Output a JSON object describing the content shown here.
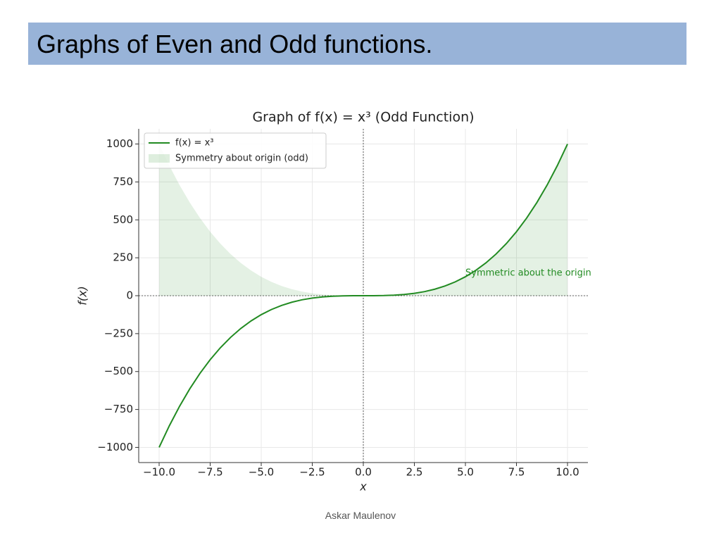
{
  "slide": {
    "title": "Graphs of Even and Odd functions.",
    "footer": "Askar Maulenov"
  },
  "chart_data": {
    "type": "line",
    "title": "Graph of f(x) = x³ (Odd Function)",
    "x_label": "x",
    "y_label": "f(x)",
    "annotation": "Symmetric about the origin",
    "x": [
      -10,
      -9.5,
      -9,
      -8.5,
      -8,
      -7.5,
      -7,
      -6.5,
      -6,
      -5.5,
      -5,
      -4.5,
      -4,
      -3.5,
      -3,
      -2.5,
      -2,
      -1.5,
      -1,
      -0.5,
      0,
      0.5,
      1,
      1.5,
      2,
      2.5,
      3,
      3.5,
      4,
      4.5,
      5,
      5.5,
      6,
      6.5,
      7,
      7.5,
      8,
      8.5,
      9,
      9.5,
      10
    ],
    "series": [
      {
        "name": "f(x) = x³",
        "type": "line",
        "color": "#228b22",
        "values": [
          -1000,
          -857.375,
          -729,
          -614.125,
          -512,
          -421.875,
          -343,
          -274.625,
          -216,
          -166.375,
          -125,
          -91.125,
          -64,
          -42.875,
          -27,
          -15.625,
          -8,
          -3.375,
          -1,
          -0.125,
          0,
          0.125,
          1,
          3.375,
          8,
          15.625,
          27,
          42.875,
          64,
          91.125,
          125,
          166.375,
          216,
          274.625,
          343,
          421.875,
          512,
          614.125,
          729,
          857.375,
          1000
        ]
      },
      {
        "name": "Symmetry about origin (odd)",
        "type": "area",
        "color": "#228b22",
        "values": [
          1000,
          857.375,
          729,
          614.125,
          512,
          421.875,
          343,
          274.625,
          216,
          166.375,
          125,
          91.125,
          64,
          42.875,
          27,
          15.625,
          8,
          3.375,
          1,
          0.125,
          0,
          0.125,
          1,
          3.375,
          8,
          15.625,
          27,
          42.875,
          64,
          91.125,
          125,
          166.375,
          216,
          274.625,
          343,
          421.875,
          512,
          614.125,
          729,
          857.375,
          1000
        ]
      }
    ],
    "xlim": [
      -11,
      11
    ],
    "ylim": [
      -1100,
      1100
    ],
    "xticks": [
      {
        "value": -10,
        "label": "−10.0"
      },
      {
        "value": -7.5,
        "label": "−7.5"
      },
      {
        "value": -5,
        "label": "−5.0"
      },
      {
        "value": -2.5,
        "label": "−2.5"
      },
      {
        "value": 0,
        "label": "0.0"
      },
      {
        "value": 2.5,
        "label": "2.5"
      },
      {
        "value": 5,
        "label": "5.0"
      },
      {
        "value": 7.5,
        "label": "7.5"
      },
      {
        "value": 10,
        "label": "10.0"
      }
    ],
    "yticks": [
      {
        "value": -1000,
        "label": "−1000"
      },
      {
        "value": -750,
        "label": "−750"
      },
      {
        "value": -500,
        "label": "−500"
      },
      {
        "value": -250,
        "label": "−250"
      },
      0,
      250,
      500,
      750,
      1000
    ],
    "grid": true,
    "legend": "upper left"
  }
}
